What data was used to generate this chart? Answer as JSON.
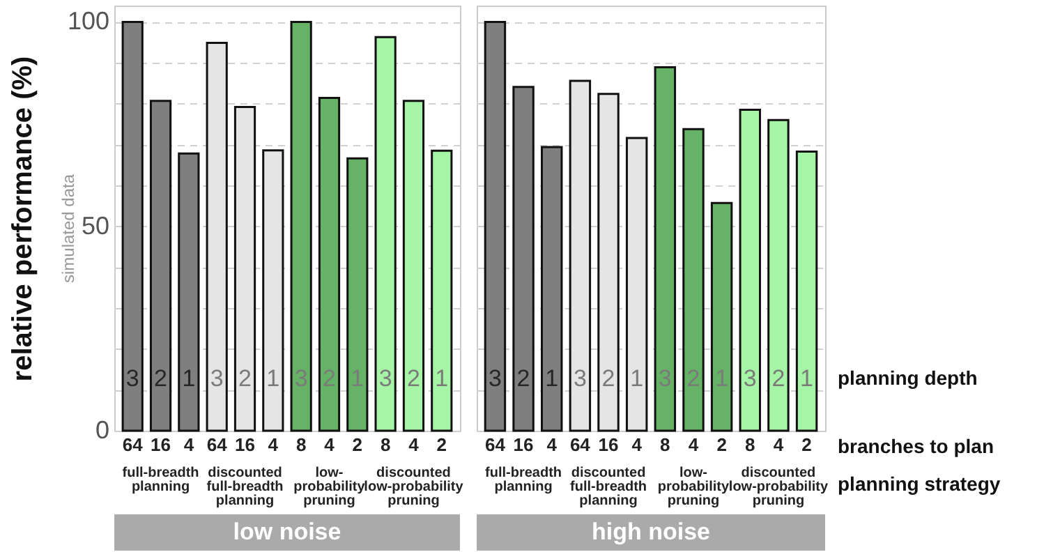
{
  "chart_data": [
    {
      "type": "bar",
      "title": "low noise",
      "ylabel": "relative performance (%)",
      "subtitle": "simulated data",
      "categories": [
        "64",
        "16",
        "4",
        "64",
        "16",
        "4",
        "8",
        "4",
        "2",
        "8",
        "4",
        "2"
      ],
      "values": [
        100,
        80.7,
        67.8,
        94.9,
        79.2,
        68.6,
        100,
        81.4,
        66.6,
        96.3,
        80.7,
        68.5
      ],
      "colors": [
        "#7f7f7f",
        "#7f7f7f",
        "#7f7f7f",
        "#e5e5e5",
        "#e5e5e5",
        "#e5e5e5",
        "#66b266",
        "#66b266",
        "#66b266",
        "#a6f5a6",
        "#a6f5a6",
        "#a6f5a6"
      ],
      "ylim": [
        0,
        104
      ],
      "yticks": [
        0,
        {
          "value": 10,
          "label": null
        },
        {
          "value": 20,
          "label": null
        },
        {
          "value": 30,
          "label": null
        },
        {
          "value": 40,
          "label": null
        },
        50,
        {
          "value": 60,
          "label": null
        },
        {
          "value": 70,
          "label": null
        },
        {
          "value": 80,
          "label": null
        },
        {
          "value": 90,
          "label": null
        },
        100
      ],
      "grid": "y",
      "annotations": [
        "3",
        "2",
        "1",
        "3",
        "2",
        "1",
        "3",
        "2",
        "1",
        "3",
        "2",
        "1",
        "full-breadth\nplanning",
        "discounted\nfull-breadth\nplanning",
        "low-\nprobability\npruning",
        "discounted\nlow-probability\npruning"
      ]
    },
    {
      "type": "bar",
      "title": "high noise",
      "categories": [
        "64",
        "16",
        "4",
        "64",
        "16",
        "4",
        "8",
        "4",
        "2",
        "8",
        "4",
        "2"
      ],
      "values": [
        100,
        84.1,
        69.4,
        85.6,
        82.4,
        71.6,
        88.9,
        73.8,
        55.7,
        78.5,
        76.0,
        68.3
      ],
      "colors": [
        "#7f7f7f",
        "#7f7f7f",
        "#7f7f7f",
        "#e5e5e5",
        "#e5e5e5",
        "#e5e5e5",
        "#66b266",
        "#66b266",
        "#66b266",
        "#a6f5a6",
        "#a6f5a6",
        "#a6f5a6"
      ],
      "ylim": [
        0,
        104
      ],
      "yticks": [
        0,
        {
          "value": 10,
          "label": null
        },
        {
          "value": 20,
          "label": null
        },
        {
          "value": 30,
          "label": null
        },
        {
          "value": 40,
          "label": null
        },
        50,
        {
          "value": 60,
          "label": null
        },
        {
          "value": 70,
          "label": null
        },
        {
          "value": 80,
          "label": null
        },
        {
          "value": 90,
          "label": null
        },
        100
      ],
      "grid": "y",
      "tick_labels": "x",
      "annotations": [
        "3",
        "2",
        "1",
        "3",
        "2",
        "1",
        "3",
        "2",
        "1",
        "3",
        "2",
        "1",
        "full-breadth\nplanning",
        "discounted\nfull-breadth\nplanning",
        "low-\nprobability\npruning",
        "discounted\nlow-probability\npruning",
        "planning depth",
        "branches to plan",
        "planning strategy"
      ]
    }
  ]
}
